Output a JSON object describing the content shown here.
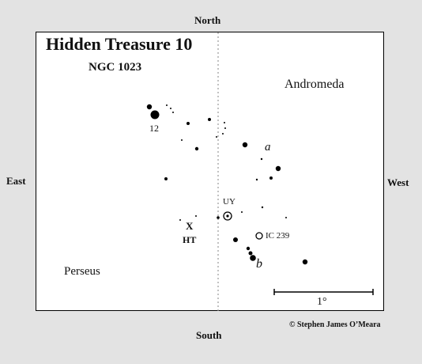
{
  "compass": {
    "north": "North",
    "south": "South",
    "east": "East",
    "west": "West"
  },
  "title": "Hidden Treasure 10",
  "subtitle": "NGC 1023",
  "regions": {
    "andromeda": "Andromeda",
    "perseus": "Perseus"
  },
  "labels": {
    "star_12": "12",
    "star_a": "a",
    "star_b": "b",
    "uy": "UY",
    "ic239": "IC 239",
    "target_mark": "X",
    "target": "HT"
  },
  "scale_label": "1°",
  "credit": "© Stephen James O’Meara"
}
